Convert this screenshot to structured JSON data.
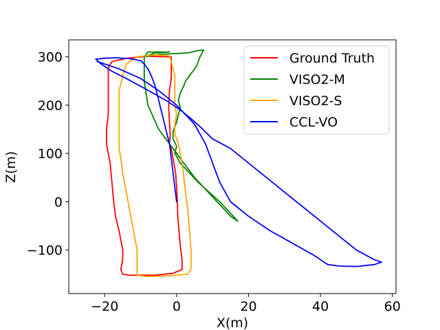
{
  "chart_data": {
    "type": "line",
    "xlabel": "X(m)",
    "ylabel": "Z(m)",
    "xlim": [
      -30,
      61
    ],
    "ylim": [
      -190,
      335
    ],
    "xticks": [
      -20,
      0,
      20,
      40,
      60
    ],
    "yticks": [
      -100,
      0,
      100,
      200,
      300
    ],
    "xtick_labels": [
      "−20",
      "0",
      "20",
      "40",
      "60"
    ],
    "ytick_labels": [
      "−100",
      "0",
      "100",
      "200",
      "300"
    ],
    "grid": false,
    "legend_position": "top-right",
    "series": [
      {
        "name": "Ground Truth",
        "color": "#ff0000",
        "points": [
          [
            -1.5,
            300
          ],
          [
            -1.5,
            275
          ],
          [
            -1.5,
            255
          ],
          [
            -2,
            230
          ],
          [
            -2.2,
            195
          ],
          [
            -2,
            165
          ],
          [
            -1.8,
            140
          ],
          [
            -2,
            120
          ],
          [
            -1.5,
            110
          ],
          [
            -1,
            90
          ],
          [
            -0.3,
            60
          ],
          [
            0,
            30
          ],
          [
            0.2,
            0
          ],
          [
            0.3,
            -30
          ],
          [
            1,
            -90
          ],
          [
            1.5,
            -120
          ],
          [
            1.5,
            -140
          ],
          [
            -1,
            -148
          ],
          [
            -6,
            -152
          ],
          [
            -13,
            -152
          ],
          [
            -15,
            -150
          ],
          [
            -15.5,
            -140
          ],
          [
            -15,
            -120
          ],
          [
            -15,
            -100
          ],
          [
            -16,
            -60
          ],
          [
            -17,
            -30
          ],
          [
            -17.5,
            0
          ],
          [
            -18,
            40
          ],
          [
            -18.5,
            80
          ],
          [
            -19,
            100
          ],
          [
            -19.5,
            120
          ],
          [
            -19.5,
            150
          ],
          [
            -19,
            180
          ],
          [
            -19,
            200
          ],
          [
            -19,
            230
          ],
          [
            -19,
            260
          ],
          [
            -19,
            278
          ],
          [
            -18,
            290
          ],
          [
            -14,
            297
          ],
          [
            -8,
            301
          ],
          [
            -3,
            300
          ],
          [
            -1.5,
            300
          ]
        ]
      },
      {
        "name": "VISO2-M",
        "color": "#008000",
        "points": [
          [
            7.5,
            314
          ],
          [
            6.5,
            300
          ],
          [
            6,
            290
          ],
          [
            5.5,
            280
          ],
          [
            4,
            265
          ],
          [
            2.5,
            250
          ],
          [
            2,
            240
          ],
          [
            1,
            225
          ],
          [
            0.5,
            210
          ],
          [
            1,
            195
          ],
          [
            0.5,
            180
          ],
          [
            0,
            165
          ],
          [
            -0.5,
            155
          ],
          [
            -1,
            145
          ],
          [
            -1,
            130
          ],
          [
            0,
            115
          ],
          [
            -0.5,
            100
          ],
          [
            1,
            80
          ],
          [
            6,
            40
          ],
          [
            12,
            0
          ],
          [
            17,
            -40
          ],
          [
            15,
            -30
          ],
          [
            10,
            10
          ],
          [
            5,
            50
          ],
          [
            0,
            100
          ],
          [
            -5,
            150
          ],
          [
            -8,
            200
          ],
          [
            -9,
            250
          ],
          [
            -9,
            300
          ],
          [
            -8,
            310
          ],
          [
            -2,
            310
          ],
          [
            -6,
            308
          ],
          [
            -9,
            300
          ],
          [
            -5,
            305
          ],
          [
            3,
            308
          ],
          [
            6,
            313
          ],
          [
            7.5,
            314
          ]
        ]
      },
      {
        "name": "VISO2-S",
        "color": "#ffa500",
        "points": [
          [
            -2,
            302
          ],
          [
            -1.5,
            290
          ],
          [
            -1,
            275
          ],
          [
            -0.5,
            260
          ],
          [
            -0.5,
            240
          ],
          [
            -0.5,
            220
          ],
          [
            -0.5,
            200
          ],
          [
            0,
            180
          ],
          [
            -0.5,
            160
          ],
          [
            -0.5,
            140
          ],
          [
            0.5,
            120
          ],
          [
            1,
            100
          ],
          [
            1.5,
            80
          ],
          [
            2,
            50
          ],
          [
            2.5,
            20
          ],
          [
            3,
            -10
          ],
          [
            3.5,
            -50
          ],
          [
            4,
            -100
          ],
          [
            4,
            -140
          ],
          [
            3,
            -150
          ],
          [
            -2,
            -153
          ],
          [
            -8,
            -155
          ],
          [
            -11,
            -152
          ],
          [
            -11,
            -140
          ],
          [
            -11,
            -100
          ],
          [
            -12,
            -60
          ],
          [
            -13,
            -20
          ],
          [
            -14,
            20
          ],
          [
            -15,
            60
          ],
          [
            -15.5,
            90
          ],
          [
            -16,
            110
          ],
          [
            -16,
            140
          ],
          [
            -16,
            170
          ],
          [
            -16,
            200
          ],
          [
            -16,
            230
          ],
          [
            -15,
            260
          ],
          [
            -14,
            285
          ],
          [
            -11,
            300
          ],
          [
            -6,
            304
          ],
          [
            -2,
            302
          ]
        ]
      },
      {
        "name": "CCL-VO",
        "color": "#0000ff",
        "points": [
          [
            0,
            0
          ],
          [
            -0.5,
            30
          ],
          [
            -1,
            60
          ],
          [
            -1.5,
            90
          ],
          [
            -2,
            120
          ],
          [
            -3,
            150
          ],
          [
            -4,
            180
          ],
          [
            -5,
            210
          ],
          [
            -6,
            240
          ],
          [
            -7,
            260
          ],
          [
            -8,
            275
          ],
          [
            -9,
            285
          ],
          [
            -10,
            292
          ],
          [
            -13,
            296
          ],
          [
            -17,
            298
          ],
          [
            -20,
            297
          ],
          [
            -22.5,
            295
          ],
          [
            -21,
            285
          ],
          [
            -18,
            270
          ],
          [
            -14,
            255
          ],
          [
            -9,
            235
          ],
          [
            -3,
            210
          ],
          [
            1,
            190
          ],
          [
            4,
            172
          ],
          [
            7,
            152
          ],
          [
            10,
            130
          ],
          [
            15,
            110
          ],
          [
            20,
            80
          ],
          [
            25,
            50
          ],
          [
            30,
            20
          ],
          [
            35,
            -10
          ],
          [
            40,
            -40
          ],
          [
            45,
            -70
          ],
          [
            50,
            -100
          ],
          [
            55,
            -120
          ],
          [
            57,
            -125
          ],
          [
            55,
            -130
          ],
          [
            50,
            -134
          ],
          [
            45,
            -133
          ],
          [
            42,
            -130
          ],
          [
            38,
            -110
          ],
          [
            32,
            -85
          ],
          [
            26,
            -60
          ],
          [
            20,
            -30
          ],
          [
            15,
            0
          ],
          [
            12,
            40
          ],
          [
            10,
            80
          ],
          [
            8,
            120
          ],
          [
            5,
            160
          ],
          [
            0,
            200
          ],
          [
            -5,
            230
          ],
          [
            -10,
            255
          ],
          [
            -16,
            275
          ],
          [
            -20,
            285
          ],
          [
            -22,
            290
          ]
        ]
      }
    ]
  }
}
